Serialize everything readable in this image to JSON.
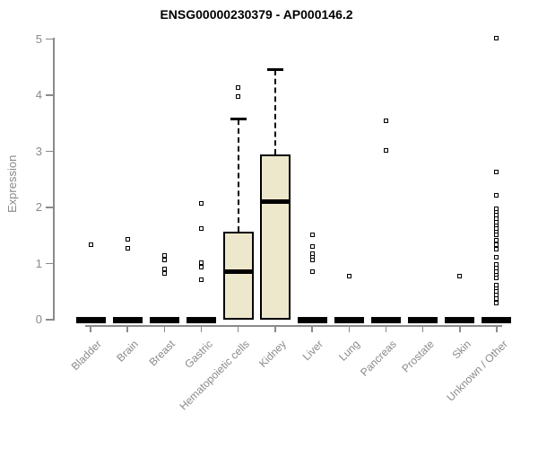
{
  "chart_data": {
    "type": "boxplot",
    "title": "ENSG00000230379 - AP000146.2",
    "xlabel": "",
    "ylabel": "Expression",
    "ylim": [
      0,
      5
    ],
    "yticks": [
      0,
      1,
      2,
      3,
      4,
      5
    ],
    "grid": false,
    "legend": "none",
    "categories": [
      "Bladder",
      "Brain",
      "Breast",
      "Gastric",
      "Hematopoietic cells",
      "Kidney",
      "Liver",
      "Lung",
      "Pancreas",
      "Prostate",
      "Skin",
      "Unknown / Other"
    ],
    "boxes": [
      {
        "category": "Bladder",
        "q1": 0,
        "median": 0,
        "q3": 0,
        "whisker_low": 0,
        "whisker_high": 0,
        "outliers": [
          1.34
        ]
      },
      {
        "category": "Brain",
        "q1": 0,
        "median": 0,
        "q3": 0,
        "whisker_low": 0,
        "whisker_high": 0,
        "outliers": [
          1.44,
          1.28
        ]
      },
      {
        "category": "Breast",
        "q1": 0,
        "median": 0,
        "q3": 0,
        "whisker_low": 0,
        "whisker_high": 0,
        "outliers": [
          1.15,
          1.07,
          0.91,
          0.83
        ]
      },
      {
        "category": "Gastric",
        "q1": 0,
        "median": 0,
        "q3": 0,
        "whisker_low": 0,
        "whisker_high": 0,
        "outliers": [
          2.08,
          1.62,
          1.01,
          0.93,
          0.72
        ]
      },
      {
        "category": "Hematopoietic cells",
        "q1": 0,
        "median": 0.86,
        "q3": 1.57,
        "whisker_low": 0,
        "whisker_high": 3.57,
        "outliers": [
          4.13,
          3.97
        ]
      },
      {
        "category": "Kidney",
        "q1": 0,
        "median": 2.1,
        "q3": 2.94,
        "whisker_low": 0,
        "whisker_high": 4.45,
        "outliers": []
      },
      {
        "category": "Liver",
        "q1": 0,
        "median": 0,
        "q3": 0,
        "whisker_low": 0,
        "whisker_high": 0,
        "outliers": [
          1.52,
          1.31,
          1.17,
          1.11,
          1.06,
          0.85
        ]
      },
      {
        "category": "Lung",
        "q1": 0,
        "median": 0,
        "q3": 0,
        "whisker_low": 0,
        "whisker_high": 0,
        "outliers": [
          0.77
        ]
      },
      {
        "category": "Pancreas",
        "q1": 0,
        "median": 0,
        "q3": 0,
        "whisker_low": 0,
        "whisker_high": 0,
        "outliers": [
          3.55,
          3.01
        ]
      },
      {
        "category": "Prostate",
        "q1": 0,
        "median": 0,
        "q3": 0,
        "whisker_low": 0,
        "whisker_high": 0,
        "outliers": []
      },
      {
        "category": "Skin",
        "q1": 0,
        "median": 0,
        "q3": 0,
        "whisker_low": 0,
        "whisker_high": 0,
        "outliers": [
          0.78
        ]
      },
      {
        "category": "Unknown / Other",
        "q1": 0,
        "median": 0,
        "q3": 0,
        "whisker_low": 0,
        "whisker_high": 0,
        "outliers": [
          5.01,
          2.64,
          2.22,
          1.98,
          1.92,
          1.86,
          1.8,
          1.74,
          1.68,
          1.62,
          1.56,
          1.52,
          1.41,
          1.33,
          1.26,
          1.12,
          0.98,
          0.92,
          0.86,
          0.8,
          0.74,
          0.62,
          0.56,
          0.5,
          0.44,
          0.37,
          0.29
        ]
      }
    ],
    "colors": {
      "box_fill": "#EDE7CC",
      "box_border": "#000000",
      "axis": "#8a8a8a",
      "title_text": "#000000"
    }
  }
}
